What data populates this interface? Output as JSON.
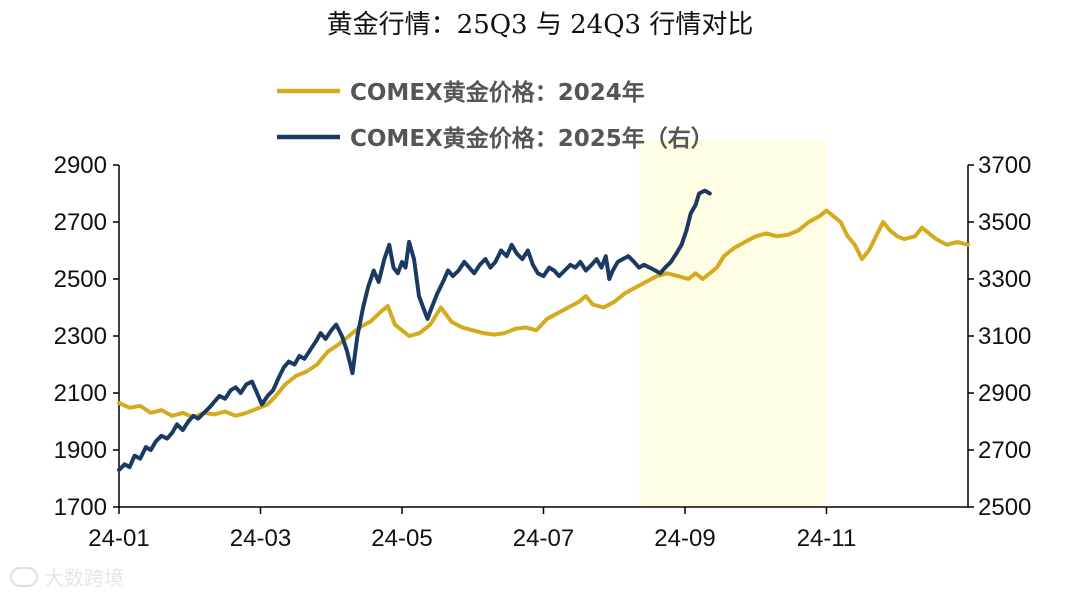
{
  "title": "黄金行情：25Q3 与 24Q3 行情对比",
  "watermark": "大数跨境",
  "colors": {
    "series_2024": "#D4AA1E",
    "series_2025": "#1B3A63",
    "highlight": "#FFFDE3",
    "axis": "#000000"
  },
  "chart_data": {
    "type": "line",
    "x_axis": {
      "range": [
        "24-01",
        "24-12"
      ],
      "tick_labels": [
        "24-01",
        "24-03",
        "24-05",
        "24-07",
        "24-09",
        "24-11"
      ],
      "tick_positions": [
        0,
        2,
        4,
        6,
        8,
        10
      ],
      "max": 12
    },
    "y_left": {
      "range": [
        1700,
        2900
      ],
      "ticks": [
        1700,
        1900,
        2100,
        2300,
        2500,
        2700,
        2900
      ]
    },
    "y_right": {
      "range": [
        2500,
        3700
      ],
      "ticks": [
        2500,
        2700,
        2900,
        3100,
        3300,
        3500,
        3700
      ],
      "note": "右"
    },
    "highlight_band": {
      "x_start": 7.35,
      "x_end": 10.0
    },
    "legend_placement": "top-center",
    "series": [
      {
        "name": "COMEX黄金价格：2024年",
        "axis": "left",
        "points": [
          [
            0.0,
            2065
          ],
          [
            0.15,
            2048
          ],
          [
            0.3,
            2055
          ],
          [
            0.45,
            2030
          ],
          [
            0.6,
            2040
          ],
          [
            0.75,
            2020
          ],
          [
            0.9,
            2030
          ],
          [
            1.05,
            2015
          ],
          [
            1.2,
            2030
          ],
          [
            1.35,
            2025
          ],
          [
            1.5,
            2035
          ],
          [
            1.65,
            2020
          ],
          [
            1.8,
            2030
          ],
          [
            1.95,
            2045
          ],
          [
            2.1,
            2060
          ],
          [
            2.2,
            2085
          ],
          [
            2.35,
            2130
          ],
          [
            2.5,
            2160
          ],
          [
            2.65,
            2175
          ],
          [
            2.8,
            2200
          ],
          [
            2.95,
            2245
          ],
          [
            3.1,
            2270
          ],
          [
            3.25,
            2300
          ],
          [
            3.4,
            2330
          ],
          [
            3.55,
            2350
          ],
          [
            3.7,
            2385
          ],
          [
            3.8,
            2405
          ],
          [
            3.9,
            2340
          ],
          [
            4.0,
            2320
          ],
          [
            4.1,
            2300
          ],
          [
            4.25,
            2310
          ],
          [
            4.4,
            2340
          ],
          [
            4.55,
            2400
          ],
          [
            4.7,
            2350
          ],
          [
            4.85,
            2330
          ],
          [
            5.0,
            2320
          ],
          [
            5.15,
            2310
          ],
          [
            5.3,
            2305
          ],
          [
            5.45,
            2310
          ],
          [
            5.6,
            2325
          ],
          [
            5.75,
            2330
          ],
          [
            5.9,
            2320
          ],
          [
            6.05,
            2360
          ],
          [
            6.2,
            2380
          ],
          [
            6.35,
            2400
          ],
          [
            6.5,
            2420
          ],
          [
            6.6,
            2440
          ],
          [
            6.7,
            2410
          ],
          [
            6.85,
            2400
          ],
          [
            7.0,
            2420
          ],
          [
            7.15,
            2450
          ],
          [
            7.3,
            2470
          ],
          [
            7.45,
            2490
          ],
          [
            7.6,
            2510
          ],
          [
            7.75,
            2520
          ],
          [
            7.9,
            2510
          ],
          [
            8.05,
            2500
          ],
          [
            8.15,
            2520
          ],
          [
            8.25,
            2500
          ],
          [
            8.35,
            2520
          ],
          [
            8.45,
            2540
          ],
          [
            8.55,
            2580
          ],
          [
            8.7,
            2610
          ],
          [
            8.85,
            2630
          ],
          [
            9.0,
            2650
          ],
          [
            9.15,
            2660
          ],
          [
            9.3,
            2650
          ],
          [
            9.45,
            2655
          ],
          [
            9.6,
            2670
          ],
          [
            9.75,
            2700
          ],
          [
            9.9,
            2720
          ],
          [
            10.0,
            2740
          ],
          [
            10.1,
            2720
          ],
          [
            10.2,
            2700
          ],
          [
            10.3,
            2650
          ],
          [
            10.4,
            2620
          ],
          [
            10.5,
            2570
          ],
          [
            10.6,
            2600
          ],
          [
            10.7,
            2650
          ],
          [
            10.8,
            2700
          ],
          [
            10.9,
            2670
          ],
          [
            11.0,
            2650
          ],
          [
            11.1,
            2640
          ],
          [
            11.25,
            2650
          ],
          [
            11.35,
            2680
          ],
          [
            11.45,
            2660
          ],
          [
            11.55,
            2640
          ],
          [
            11.7,
            2620
          ],
          [
            11.85,
            2630
          ],
          [
            12.0,
            2620
          ]
        ]
      },
      {
        "name": "COMEX黄金价格：2025年（右）",
        "axis": "right",
        "points": [
          [
            0.0,
            2630
          ],
          [
            0.08,
            2650
          ],
          [
            0.15,
            2640
          ],
          [
            0.22,
            2680
          ],
          [
            0.3,
            2670
          ],
          [
            0.38,
            2710
          ],
          [
            0.45,
            2700
          ],
          [
            0.52,
            2730
          ],
          [
            0.6,
            2750
          ],
          [
            0.68,
            2740
          ],
          [
            0.75,
            2760
          ],
          [
            0.82,
            2790
          ],
          [
            0.9,
            2770
          ],
          [
            0.98,
            2800
          ],
          [
            1.05,
            2820
          ],
          [
            1.12,
            2810
          ],
          [
            1.2,
            2830
          ],
          [
            1.28,
            2850
          ],
          [
            1.35,
            2870
          ],
          [
            1.42,
            2890
          ],
          [
            1.5,
            2880
          ],
          [
            1.58,
            2910
          ],
          [
            1.65,
            2920
          ],
          [
            1.72,
            2900
          ],
          [
            1.8,
            2930
          ],
          [
            1.88,
            2940
          ],
          [
            1.95,
            2900
          ],
          [
            2.02,
            2860
          ],
          [
            2.1,
            2890
          ],
          [
            2.18,
            2910
          ],
          [
            2.25,
            2950
          ],
          [
            2.33,
            2990
          ],
          [
            2.4,
            3010
          ],
          [
            2.48,
            3000
          ],
          [
            2.55,
            3030
          ],
          [
            2.62,
            3020
          ],
          [
            2.7,
            3050
          ],
          [
            2.78,
            3080
          ],
          [
            2.85,
            3110
          ],
          [
            2.92,
            3090
          ],
          [
            3.0,
            3120
          ],
          [
            3.07,
            3140
          ],
          [
            3.15,
            3100
          ],
          [
            3.22,
            3050
          ],
          [
            3.3,
            2970
          ],
          [
            3.37,
            3100
          ],
          [
            3.45,
            3200
          ],
          [
            3.52,
            3270
          ],
          [
            3.6,
            3330
          ],
          [
            3.67,
            3290
          ],
          [
            3.75,
            3370
          ],
          [
            3.82,
            3420
          ],
          [
            3.88,
            3340
          ],
          [
            3.94,
            3320
          ],
          [
            4.0,
            3360
          ],
          [
            4.05,
            3340
          ],
          [
            4.1,
            3430
          ],
          [
            4.17,
            3370
          ],
          [
            4.24,
            3240
          ],
          [
            4.3,
            3200
          ],
          [
            4.36,
            3160
          ],
          [
            4.42,
            3200
          ],
          [
            4.5,
            3250
          ],
          [
            4.58,
            3290
          ],
          [
            4.65,
            3330
          ],
          [
            4.72,
            3310
          ],
          [
            4.8,
            3330
          ],
          [
            4.88,
            3360
          ],
          [
            4.95,
            3340
          ],
          [
            5.02,
            3320
          ],
          [
            5.1,
            3350
          ],
          [
            5.18,
            3370
          ],
          [
            5.25,
            3340
          ],
          [
            5.32,
            3360
          ],
          [
            5.4,
            3400
          ],
          [
            5.48,
            3380
          ],
          [
            5.55,
            3420
          ],
          [
            5.62,
            3390
          ],
          [
            5.7,
            3370
          ],
          [
            5.78,
            3400
          ],
          [
            5.85,
            3350
          ],
          [
            5.92,
            3320
          ],
          [
            6.0,
            3310
          ],
          [
            6.08,
            3340
          ],
          [
            6.15,
            3330
          ],
          [
            6.22,
            3310
          ],
          [
            6.3,
            3330
          ],
          [
            6.38,
            3350
          ],
          [
            6.45,
            3340
          ],
          [
            6.52,
            3360
          ],
          [
            6.6,
            3330
          ],
          [
            6.68,
            3350
          ],
          [
            6.75,
            3370
          ],
          [
            6.82,
            3340
          ],
          [
            6.88,
            3380
          ],
          [
            6.93,
            3300
          ],
          [
            6.98,
            3330
          ],
          [
            7.05,
            3360
          ],
          [
            7.12,
            3370
          ],
          [
            7.2,
            3380
          ],
          [
            7.28,
            3360
          ],
          [
            7.35,
            3340
          ],
          [
            7.42,
            3350
          ],
          [
            7.5,
            3340
          ],
          [
            7.58,
            3330
          ],
          [
            7.65,
            3320
          ],
          [
            7.72,
            3340
          ],
          [
            7.8,
            3360
          ],
          [
            7.88,
            3390
          ],
          [
            7.95,
            3420
          ],
          [
            8.02,
            3470
          ],
          [
            8.08,
            3530
          ],
          [
            8.15,
            3560
          ],
          [
            8.2,
            3600
          ],
          [
            8.28,
            3610
          ],
          [
            8.35,
            3600
          ]
        ]
      }
    ]
  }
}
